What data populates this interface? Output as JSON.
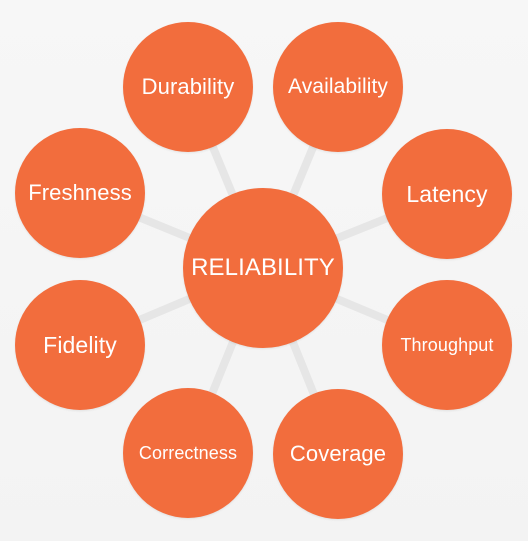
{
  "diagram": {
    "center": {
      "label": "RELIABILITY"
    },
    "nodes": [
      {
        "id": "durability",
        "label": "Durability"
      },
      {
        "id": "availability",
        "label": "Availability"
      },
      {
        "id": "freshness",
        "label": "Freshness"
      },
      {
        "id": "latency",
        "label": "Latency"
      },
      {
        "id": "fidelity",
        "label": "Fidelity"
      },
      {
        "id": "throughput",
        "label": "Throughput"
      },
      {
        "id": "correctness",
        "label": "Correctness"
      },
      {
        "id": "coverage",
        "label": "Coverage"
      }
    ]
  },
  "colors": {
    "node_fill": "#f26d3d",
    "text": "#ffffff",
    "connector": "#e6e6e6",
    "background": "#f6f6f6"
  }
}
